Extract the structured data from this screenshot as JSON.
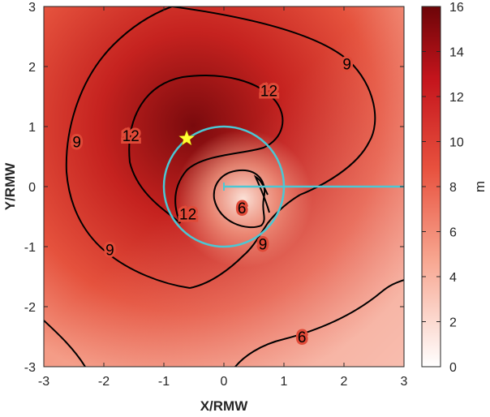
{
  "chart_data": {
    "type": "heatmap",
    "xlabel": "X/RMW",
    "ylabel": "Y/RMW",
    "xlim": [
      -3,
      3
    ],
    "ylim": [
      -3,
      3
    ],
    "x_ticks": [
      "-3",
      "-2",
      "-1",
      "0",
      "1",
      "2",
      "3"
    ],
    "y_ticks": [
      "-3",
      "-2",
      "-1",
      "0",
      "1",
      "2",
      "3"
    ],
    "colorbar": {
      "label": "m",
      "range": [
        0,
        16
      ],
      "ticks": [
        "0",
        "2",
        "4",
        "6",
        "8",
        "10",
        "12",
        "14",
        "16"
      ],
      "colors": [
        "#ffffff",
        "#f7a58f",
        "#e8513e",
        "#c4141c",
        "#6d0508"
      ]
    },
    "field": {
      "maximum_center": [
        -0.55,
        1.0
      ],
      "minimum_center": [
        0.35,
        -0.25
      ],
      "maximum_value": 15.5,
      "minimum_value": 3.0
    },
    "contours": [
      {
        "level": 6,
        "label": "6",
        "label_positions": [
          [
            0.3,
            -0.35
          ],
          [
            1.3,
            -2.5
          ]
        ]
      },
      {
        "level": 9,
        "label": "9",
        "label_positions": [
          [
            -2.45,
            0.75
          ],
          [
            -1.9,
            -1.05
          ],
          [
            0.65,
            -0.95
          ],
          [
            2.05,
            2.05
          ]
        ]
      },
      {
        "level": 12,
        "label": "12",
        "label_positions": [
          [
            -1.55,
            0.85
          ],
          [
            0.75,
            1.6
          ],
          [
            -0.6,
            -0.45
          ]
        ]
      }
    ],
    "rmw_circle": {
      "center": [
        0,
        0
      ],
      "radius": 1,
      "color": "#4cc7d4"
    },
    "shear_vector": {
      "from": [
        0,
        0
      ],
      "to": [
        3,
        0
      ],
      "color": "#4cc7d4"
    },
    "star_marker": {
      "x": -0.62,
      "y": 0.8,
      "color": "#ffff33"
    }
  }
}
